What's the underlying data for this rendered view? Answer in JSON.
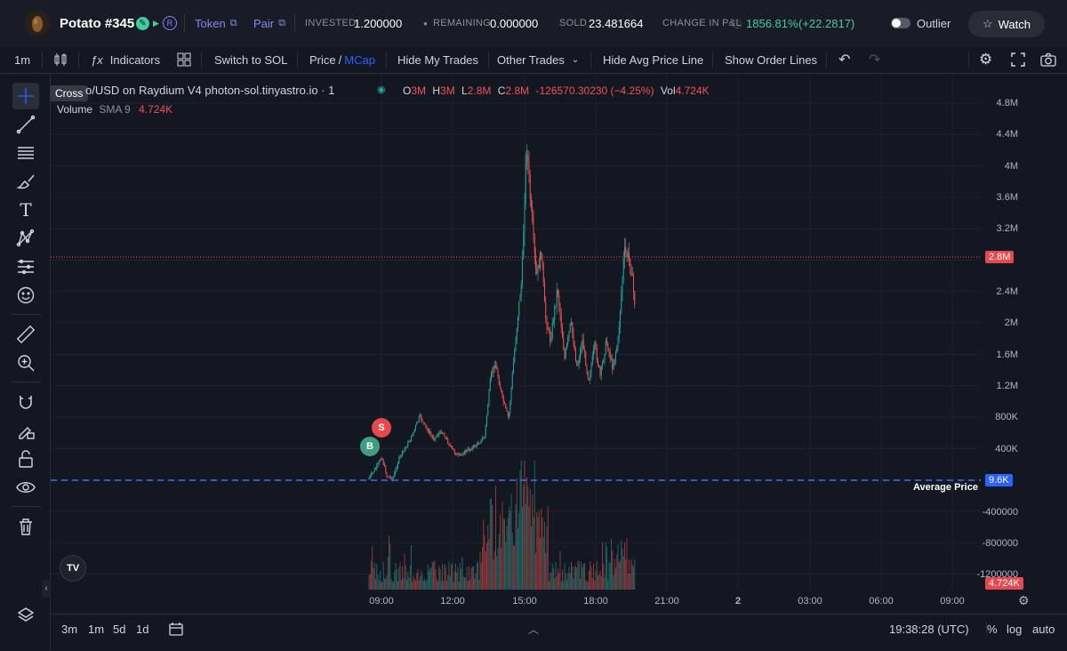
{
  "header": {
    "token_name": "Potato #345",
    "token_link": "Token",
    "pair_link": "Pair",
    "invested_label": "INVESTED",
    "invested_value": "1.200000",
    "remaining_label": "REMAINING",
    "remaining_value": "0.000000",
    "sold_label": "SOLD",
    "sold_value": "23.481664",
    "pnl_label": "CHANGE IN P&L",
    "pnl_pct": "1856.81%",
    "pnl_abs": "(+22.2817)",
    "outlier_label": "Outlier",
    "watch_label": "Watch"
  },
  "toolbar": {
    "interval": "1m",
    "indicators": "Indicators",
    "switch_sol": "Switch to SOL",
    "price": "Price",
    "slash": "/",
    "mcap": "MCap",
    "hide_my_trades": "Hide My Trades",
    "other_trades": "Other Trades",
    "hide_avg": "Hide Avg Price Line",
    "show_order": "Show Order Lines"
  },
  "legend": {
    "tooltip": "Cross",
    "pair": "o/USD on Raydium V4 photon-sol.tinyastro.io · 1",
    "o_label": "O",
    "o_val": "3M",
    "h_label": "H",
    "h_val": "3M",
    "l_label": "L",
    "l_val": "2.8M",
    "c_label": "C",
    "c_val": "2.8M",
    "change": "-126570.30230 (−4.25%)",
    "vol_label": "Vol",
    "vol_val": "4.724K",
    "volume_label": "Volume",
    "sma_label": "SMA 9",
    "sma_val": "4.724K"
  },
  "markers": {
    "sell": "S",
    "buy": "B"
  },
  "price_axis": {
    "ticks": [
      "4.8M",
      "4.4M",
      "4M",
      "3.6M",
      "3.2M",
      "2.4M",
      "2M",
      "1.6M",
      "1.2M",
      "800K",
      "400K",
      "-400000",
      "-800000",
      "-1200000"
    ],
    "current_price": "2.8M",
    "avg_price": "9.6K",
    "avg_label": "Average Price",
    "volume_tag": "4.724K"
  },
  "time_axis": {
    "ticks": [
      "09:00",
      "12:00",
      "15:00",
      "18:00",
      "21:00",
      "2",
      "03:00",
      "06:00",
      "09:00"
    ]
  },
  "bottom": {
    "ranges": [
      "3m",
      "1m",
      "5d",
      "1d"
    ],
    "clock": "19:38:28 (UTC)",
    "pct": "%",
    "log": "log",
    "auto": "auto"
  },
  "colors": {
    "up": "#26a69a",
    "down": "#ef5350",
    "avg_line": "#3d6df5",
    "bg": "#131722"
  }
}
